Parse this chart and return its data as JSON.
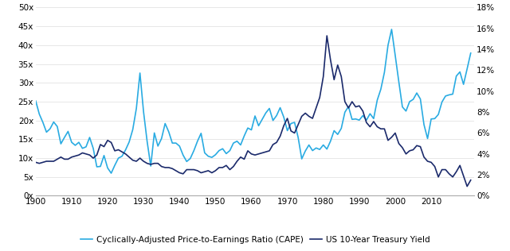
{
  "cape_data": {
    "years": [
      1900,
      1901,
      1902,
      1903,
      1904,
      1905,
      1906,
      1907,
      1908,
      1909,
      1910,
      1911,
      1912,
      1913,
      1914,
      1915,
      1916,
      1917,
      1918,
      1919,
      1920,
      1921,
      1922,
      1923,
      1924,
      1925,
      1926,
      1927,
      1928,
      1929,
      1930,
      1931,
      1932,
      1933,
      1934,
      1935,
      1936,
      1937,
      1938,
      1939,
      1940,
      1941,
      1942,
      1943,
      1944,
      1945,
      1946,
      1947,
      1948,
      1949,
      1950,
      1951,
      1952,
      1953,
      1954,
      1955,
      1956,
      1957,
      1958,
      1959,
      1960,
      1961,
      1962,
      1963,
      1964,
      1965,
      1966,
      1967,
      1968,
      1969,
      1970,
      1971,
      1972,
      1973,
      1974,
      1975,
      1976,
      1977,
      1978,
      1979,
      1980,
      1981,
      1982,
      1983,
      1984,
      1985,
      1986,
      1987,
      1988,
      1989,
      1990,
      1991,
      1992,
      1993,
      1994,
      1995,
      1996,
      1997,
      1998,
      1999,
      2000,
      2001,
      2002,
      2003,
      2004,
      2005,
      2006,
      2007,
      2008,
      2009,
      2010,
      2011,
      2012,
      2013,
      2014,
      2015,
      2016,
      2017,
      2018,
      2019,
      2020,
      2021
    ],
    "values": [
      25.2,
      21.7,
      19.5,
      16.9,
      17.8,
      19.6,
      18.4,
      13.8,
      15.5,
      17.1,
      14.2,
      13.4,
      14.2,
      12.6,
      13.0,
      15.5,
      12.6,
      7.7,
      7.8,
      10.7,
      7.4,
      6.0,
      8.1,
      10.0,
      10.5,
      12.2,
      14.3,
      17.6,
      23.2,
      32.6,
      22.3,
      14.4,
      7.9,
      16.7,
      13.2,
      15.2,
      19.2,
      17.0,
      14.0,
      14.0,
      13.2,
      10.8,
      9.1,
      9.9,
      12.0,
      14.5,
      16.6,
      11.4,
      10.5,
      10.2,
      10.9,
      12.0,
      12.5,
      11.2,
      12.0,
      14.0,
      14.5,
      13.5,
      15.9,
      18.0,
      17.5,
      21.2,
      18.6,
      20.3,
      22.0,
      23.2,
      20.0,
      21.3,
      23.4,
      20.9,
      17.3,
      19.2,
      19.5,
      15.5,
      9.8,
      11.9,
      13.5,
      12.0,
      12.7,
      12.3,
      13.5,
      12.4,
      14.5,
      17.3,
      16.3,
      17.9,
      22.2,
      23.7,
      20.3,
      20.4,
      20.1,
      21.3,
      20.1,
      21.8,
      20.5,
      25.4,
      28.3,
      32.8,
      40.0,
      44.2,
      37.3,
      30.3,
      23.6,
      22.5,
      25.0,
      25.6,
      27.3,
      25.7,
      18.9,
      15.2,
      20.4,
      20.5,
      21.6,
      24.9,
      26.5,
      26.8,
      27.0,
      31.8,
      32.9,
      29.6,
      33.7,
      37.9
    ]
  },
  "yield_data": {
    "years": [
      1900,
      1901,
      1902,
      1903,
      1904,
      1905,
      1906,
      1907,
      1908,
      1909,
      1910,
      1911,
      1912,
      1913,
      1914,
      1915,
      1916,
      1917,
      1918,
      1919,
      1920,
      1921,
      1922,
      1923,
      1924,
      1925,
      1926,
      1927,
      1928,
      1929,
      1930,
      1931,
      1932,
      1933,
      1934,
      1935,
      1936,
      1937,
      1938,
      1939,
      1940,
      1941,
      1942,
      1943,
      1944,
      1945,
      1946,
      1947,
      1948,
      1949,
      1950,
      1951,
      1952,
      1953,
      1954,
      1955,
      1956,
      1957,
      1958,
      1959,
      1960,
      1961,
      1962,
      1963,
      1964,
      1965,
      1966,
      1967,
      1968,
      1969,
      1970,
      1971,
      1972,
      1973,
      1974,
      1975,
      1976,
      1977,
      1978,
      1979,
      1980,
      1981,
      1982,
      1983,
      1984,
      1985,
      1986,
      1987,
      1988,
      1989,
      1990,
      1991,
      1992,
      1993,
      1994,
      1995,
      1996,
      1997,
      1998,
      1999,
      2000,
      2001,
      2002,
      2003,
      2004,
      2005,
      2006,
      2007,
      2008,
      2009,
      2010,
      2011,
      2012,
      2013,
      2014,
      2015,
      2016,
      2017,
      2018,
      2019,
      2020,
      2021
    ],
    "values": [
      3.2,
      3.1,
      3.2,
      3.3,
      3.3,
      3.3,
      3.5,
      3.7,
      3.5,
      3.5,
      3.7,
      3.8,
      3.9,
      4.1,
      4.0,
      3.9,
      3.6,
      3.9,
      4.9,
      4.7,
      5.3,
      5.1,
      4.3,
      4.4,
      4.2,
      4.0,
      3.7,
      3.4,
      3.3,
      3.6,
      3.3,
      3.1,
      3.0,
      3.1,
      3.1,
      2.8,
      2.7,
      2.7,
      2.6,
      2.4,
      2.2,
      2.1,
      2.5,
      2.5,
      2.5,
      2.4,
      2.2,
      2.3,
      2.4,
      2.2,
      2.4,
      2.7,
      2.7,
      2.9,
      2.5,
      2.8,
      3.3,
      3.7,
      3.5,
      4.3,
      4.0,
      3.9,
      4.0,
      4.1,
      4.2,
      4.3,
      4.9,
      5.1,
      5.7,
      6.7,
      7.4,
      6.2,
      6.0,
      6.8,
      7.6,
      7.9,
      7.6,
      7.4,
      8.4,
      9.4,
      11.4,
      15.3,
      13.0,
      11.1,
      12.5,
      11.4,
      9.0,
      8.4,
      9.0,
      8.5,
      8.6,
      8.1,
      7.0,
      6.6,
      7.1,
      6.6,
      6.4,
      6.4,
      5.3,
      5.6,
      6.0,
      5.0,
      4.6,
      4.0,
      4.3,
      4.4,
      4.8,
      4.7,
      3.7,
      3.3,
      3.2,
      2.8,
      1.8,
      2.5,
      2.5,
      2.1,
      1.8,
      2.3,
      2.9,
      1.9,
      0.9,
      1.5
    ]
  },
  "cape_color": "#29ABE2",
  "yield_color": "#1B2A6B",
  "cape_label": "Cyclically-Adjusted Price-to-Earnings Ratio (CAPE)",
  "yield_label": "US 10-Year Treasury Yield",
  "left_ylim": [
    0,
    50
  ],
  "right_ylim": [
    0,
    18
  ],
  "left_yticks": [
    0,
    5,
    10,
    15,
    20,
    25,
    30,
    35,
    40,
    45,
    50
  ],
  "left_yticklabels": [
    "0x",
    "5x",
    "10x",
    "15x",
    "20x",
    "25x",
    "30x",
    "35x",
    "40x",
    "45x",
    "50x"
  ],
  "right_yticks": [
    0,
    2,
    4,
    6,
    8,
    10,
    12,
    14,
    16,
    18
  ],
  "right_yticklabels": [
    "0%",
    "2%",
    "4%",
    "6%",
    "8%",
    "10%",
    "12%",
    "14%",
    "16%",
    "18%"
  ],
  "xticks": [
    1900,
    1910,
    1920,
    1930,
    1940,
    1950,
    1960,
    1970,
    1980,
    1990,
    2000,
    2010
  ],
  "xticklabels": [
    "1900",
    "1910",
    "1920",
    "1930",
    "1940",
    "1950",
    "1960",
    "1970",
    "1980",
    "1990",
    "2000",
    "2010"
  ],
  "xlim": [
    1900,
    2022
  ],
  "background_color": "#FFFFFF",
  "linewidth": 1.2,
  "grid_color": "#DDDDDD",
  "spine_color": "#AAAAAA",
  "tick_fontsize": 7.5,
  "legend_fontsize": 7.5
}
